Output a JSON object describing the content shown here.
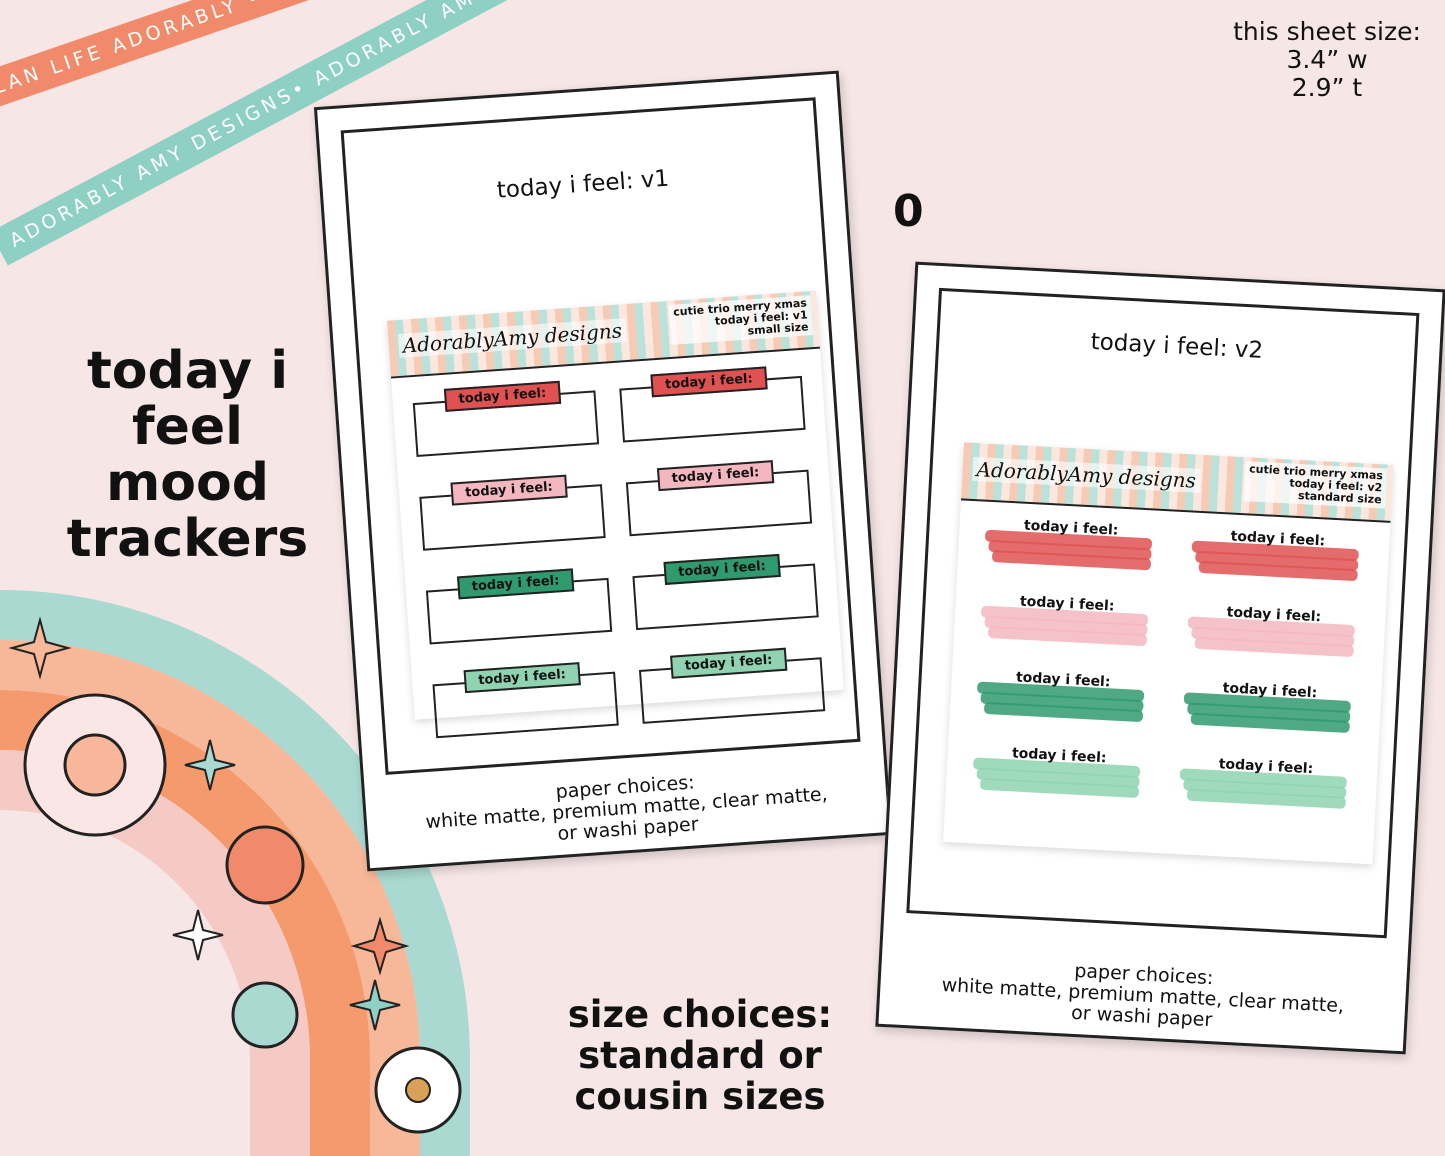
{
  "ribbons": {
    "top": "PLAN LIFE ADORABLY • PLAN LIFE ADORABLY • PLAN LIFE ADORABLY •",
    "bottom": "ADORABLY AMY DESIGNS• ADORABLY AMY DESIGNS• ADORABLY AMY DESIGNS•"
  },
  "sheet_size": {
    "label": "this sheet size:",
    "width": "3.4” w",
    "height": "2.9” t"
  },
  "headline": {
    "line1": "today i feel",
    "line2": "mood",
    "line3": "trackers"
  },
  "size_choices": {
    "line1": "size choices:",
    "line2": "standard or",
    "line3": "cousin sizes"
  },
  "separator": "0",
  "colors": {
    "background": "#f6e6e6",
    "red": "#e05252",
    "pink": "#f4b7c0",
    "green": "#2f9a6e",
    "mint": "#8fd3b0",
    "orange": "#f08a6a",
    "teal": "#8fd0c4"
  },
  "v1": {
    "title": "today i feel: v1",
    "logo": "AdorablyAmy designs",
    "info": {
      "l1": "cutie trio merry xmas",
      "l2": "today i feel: v1",
      "l3": "small size"
    },
    "tags": [
      "today i feel:",
      "today i feel:",
      "today i feel:",
      "today i feel:",
      "today i feel:",
      "today i feel:",
      "today i feel:",
      "today i feel:"
    ],
    "tag_colors": [
      "#e05252",
      "#e05252",
      "#f4b7c0",
      "#f4b7c0",
      "#2f9a6e",
      "#2f9a6e",
      "#8fd3b0",
      "#8fd3b0"
    ],
    "paper": {
      "l1": "paper choices:",
      "l2": "white matte, premium matte, clear matte,",
      "l3": "or washi paper"
    }
  },
  "v2": {
    "title": "today i feel: v2",
    "logo": "AdorablyAmy designs",
    "info": {
      "l1": "cutie trio merry xmas",
      "l2": "today i feel: v2",
      "l3": "standard size"
    },
    "tags": [
      "today i feel:",
      "today i feel:",
      "today i feel:",
      "today i feel:",
      "today i feel:",
      "today i feel:",
      "today i feel:",
      "today i feel:"
    ],
    "tag_colors": [
      "#e05252",
      "#e05252",
      "#f4b7c0",
      "#f4b7c0",
      "#2f9a6e",
      "#2f9a6e",
      "#8fd3b0",
      "#8fd3b0"
    ],
    "paper": {
      "l1": "paper choices:",
      "l2": "white matte, premium matte, clear matte,",
      "l3": "or washi paper"
    }
  }
}
